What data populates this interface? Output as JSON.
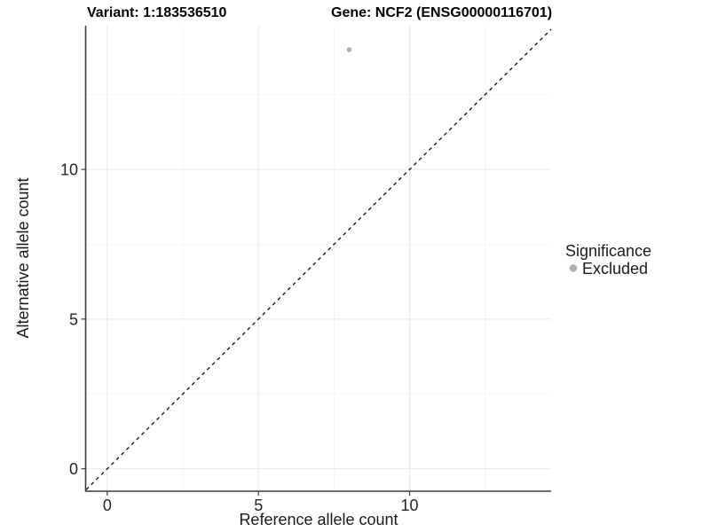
{
  "titles": {
    "variant": "Variant: 1:183536510",
    "gene": "Gene: NCF2 (ENSG00000116701)"
  },
  "legend": {
    "title": "Significance",
    "items": [
      {
        "label": "Excluded",
        "color": "#b0b0b0"
      }
    ]
  },
  "chart_data": {
    "type": "scatter",
    "title": "Variant: 1:183536510  Gene: NCF2 (ENSG00000116701)",
    "xlabel": "Reference allele count",
    "ylabel": "Alternative allele count",
    "xlim": [
      -0.7,
      14.68
    ],
    "ylim": [
      -0.75,
      14.8
    ],
    "x_ticks": [
      0,
      5,
      10
    ],
    "y_ticks": [
      0,
      5,
      10
    ],
    "x_minor_ticks": [
      2.5,
      7.5,
      12.5
    ],
    "y_minor_ticks": [
      2.5,
      7.5,
      12.5
    ],
    "grid": true,
    "legend_position": "right",
    "series": [
      {
        "name": "Excluded",
        "color": "#b0b0b0",
        "points": [
          {
            "x": 8,
            "y": 14
          }
        ]
      }
    ],
    "reference_line": {
      "type": "identity",
      "slope": 1,
      "intercept": 0,
      "style": "dashed",
      "color": "#1a1a1a"
    }
  }
}
